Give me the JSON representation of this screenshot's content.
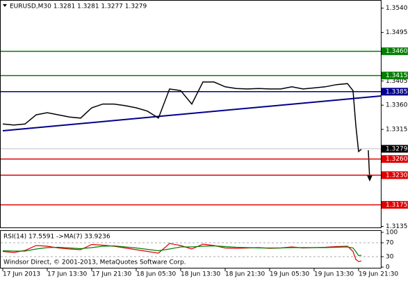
{
  "chart_data": [
    {
      "type": "line",
      "title": "EURUSD,M30  1.3281 1.3281 1.3277 1.3279",
      "color": "#000000",
      "x": [
        0,
        4,
        8,
        12,
        16,
        20,
        24,
        28,
        32,
        36,
        40,
        44,
        48,
        52,
        56,
        60,
        64,
        68,
        72,
        76,
        80,
        84,
        88,
        92,
        96,
        100,
        104,
        108,
        112,
        116,
        120,
        124,
        126,
        127,
        128,
        129
      ],
      "values": [
        1.3325,
        1.3323,
        1.3325,
        1.3342,
        1.3346,
        1.3342,
        1.3338,
        1.3336,
        1.3355,
        1.3362,
        1.3362,
        1.3359,
        1.3355,
        1.3349,
        1.3336,
        1.339,
        1.3387,
        1.3362,
        1.3403,
        1.3403,
        1.3394,
        1.3391,
        1.339,
        1.3391,
        1.339,
        1.339,
        1.3394,
        1.339,
        1.3392,
        1.3394,
        1.3398,
        1.34,
        1.3387,
        1.3323,
        1.3274,
        1.3278
      ],
      "xlim": [
        0,
        136
      ],
      "xticks": [
        {
          "value": 0,
          "label": "17 Jun 2013"
        },
        {
          "value": 16,
          "label": "17 Jun 13:30"
        },
        {
          "value": 32,
          "label": "17 Jun 21:30"
        },
        {
          "value": 48,
          "label": "18 Jun 05:30"
        },
        {
          "value": 64,
          "label": "18 Jun 13:30"
        },
        {
          "value": 80,
          "label": "18 Jun 21:30"
        },
        {
          "value": 96,
          "label": "19 Jun 05:30"
        },
        {
          "value": 112,
          "label": "19 Jun 13:30"
        },
        {
          "value": 128,
          "label": "19 Jun 21:30"
        }
      ],
      "ylim": [
        1.3133,
        1.355
      ],
      "yticks": [
        {
          "value": 1.354,
          "label": "1.3540"
        },
        {
          "value": 1.3495,
          "label": "1.3495"
        },
        {
          "value": 1.3405,
          "label": "1.3405"
        },
        {
          "value": 1.336,
          "label": "1.3360"
        },
        {
          "value": 1.3315,
          "label": "1.3315"
        },
        {
          "value": 1.3135,
          "label": "1.3135"
        }
      ],
      "levels": [
        {
          "value": 1.346,
          "label": "1.3460",
          "color": "#008000"
        },
        {
          "value": 1.3415,
          "label": "1.3415",
          "color": "#008000"
        },
        {
          "value": 1.3385,
          "label": "1.3385",
          "color": "#00008b"
        },
        {
          "value": 1.326,
          "label": "1.3260",
          "color": "#e00000"
        },
        {
          "value": 1.323,
          "label": "1.3230",
          "color": "#e00000"
        },
        {
          "value": 1.3175,
          "label": "1.3175",
          "color": "#e00000"
        }
      ],
      "current_price": {
        "value": 1.3279,
        "label": "1.3279"
      }
    },
    {
      "type": "line",
      "title": "RSI(14) 17.5591  ->MA(7) 33.9236",
      "copyright": "Windsor Direct, © 2001-2013, MetaQuotes Software Corp.",
      "x": [
        0,
        4,
        8,
        12,
        16,
        20,
        24,
        28,
        32,
        36,
        40,
        44,
        48,
        52,
        56,
        60,
        64,
        68,
        72,
        76,
        80,
        84,
        88,
        92,
        96,
        100,
        104,
        108,
        112,
        116,
        120,
        124,
        126,
        127,
        128,
        129
      ],
      "xlim": [
        0,
        136
      ],
      "ylim": [
        0,
        100
      ],
      "yticks": [
        100,
        70,
        30,
        0
      ],
      "series": [
        {
          "color": "#e00000",
          "values": [
            45,
            42,
            48,
            62,
            60,
            55,
            52,
            50,
            65,
            63,
            60,
            55,
            50,
            45,
            40,
            68,
            62,
            52,
            66,
            62,
            55,
            54,
            55,
            56,
            54,
            55,
            58,
            55,
            56,
            57,
            59,
            60,
            45,
            22,
            16,
            17.5591
          ]
        },
        {
          "color": "#008000",
          "values": [
            47,
            46,
            46,
            52,
            56,
            57,
            55,
            53,
            56,
            60,
            61,
            58,
            55,
            51,
            47,
            52,
            58,
            58,
            60,
            61,
            59,
            57,
            56,
            55,
            55,
            55,
            56,
            56,
            56,
            56,
            57,
            58,
            55,
            45,
            33,
            33.9236
          ]
        }
      ]
    }
  ]
}
